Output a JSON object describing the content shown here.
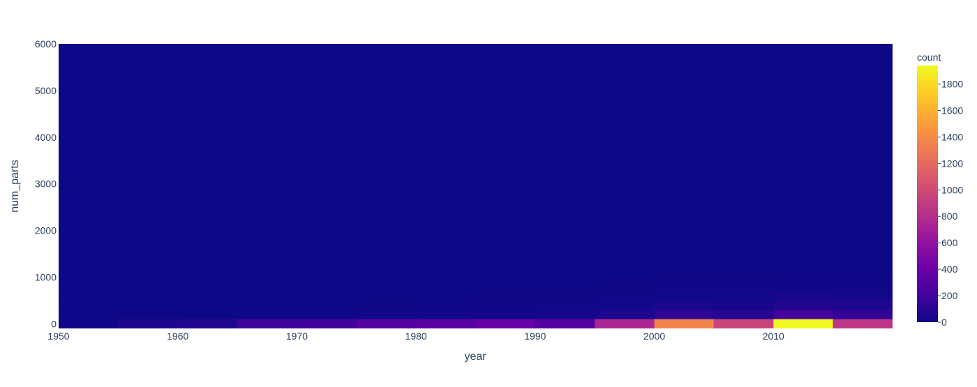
{
  "chart_data": {
    "type": "heatmap",
    "xlabel": "year",
    "ylabel": "num_parts",
    "colorbar_title": "count",
    "xlim": [
      1950,
      2020
    ],
    "ylim": [
      -100,
      6000
    ],
    "x_ticks": [
      1950,
      1960,
      1970,
      1980,
      1990,
      2000,
      2010
    ],
    "y_ticks": [
      0,
      1000,
      2000,
      3000,
      4000,
      5000,
      6000
    ],
    "colorbar_ticks": [
      0,
      200,
      400,
      600,
      800,
      1000,
      1200,
      1400,
      1600,
      1800
    ],
    "zmax": 1940,
    "colorscale": [
      "#0d0887",
      "#46039f",
      "#7201a8",
      "#9c179e",
      "#bd3786",
      "#d8576b",
      "#ed7953",
      "#fb9f3a",
      "#fdca26",
      "#f0f921"
    ],
    "x_bin_size": 5,
    "y_bin_size": 200,
    "x_bin_starts": [
      1950,
      1955,
      1960,
      1965,
      1970,
      1975,
      1980,
      1985,
      1990,
      1995,
      2000,
      2005,
      2010,
      2015
    ],
    "y_bin_starts": [
      -100,
      100,
      300,
      500,
      700,
      900
    ],
    "z": [
      [
        10,
        60,
        80,
        190,
        200,
        290,
        320,
        380,
        290,
        750,
        1350,
        950,
        1940,
        860
      ],
      [
        0,
        2,
        3,
        8,
        10,
        15,
        20,
        25,
        30,
        60,
        130,
        100,
        210,
        140
      ],
      [
        0,
        0,
        0,
        1,
        1,
        3,
        5,
        5,
        8,
        20,
        50,
        40,
        80,
        60
      ],
      [
        0,
        0,
        0,
        0,
        0,
        1,
        1,
        2,
        3,
        8,
        20,
        20,
        40,
        30
      ],
      [
        0,
        0,
        0,
        0,
        0,
        0,
        0,
        1,
        1,
        3,
        8,
        8,
        15,
        15
      ],
      [
        0,
        0,
        0,
        0,
        0,
        0,
        0,
        0,
        0,
        1,
        3,
        3,
        6,
        6
      ]
    ]
  }
}
